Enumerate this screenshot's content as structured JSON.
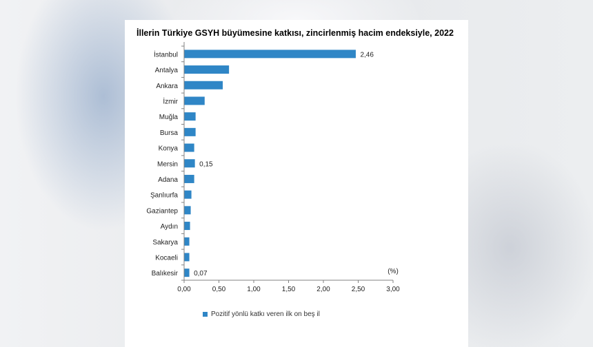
{
  "chart_data": {
    "type": "bar",
    "orientation": "horizontal",
    "title": "İllerin Türkiye GSYH büyümesine katkısı, zincirlenmiş hacim endeksiyle, 2022",
    "categories": [
      "İstanbul",
      "Antalya",
      "Ankara",
      "İzmir",
      "Muğla",
      "Bursa",
      "Konya",
      "Mersin",
      "Adana",
      "Şanlıurfa",
      "Gaziantep",
      "Aydın",
      "Sakarya",
      "Kocaeli",
      "Balıkesir"
    ],
    "series": [
      {
        "name": "Pozitif yönlü katkı veren ilk on beş il",
        "values": [
          2.46,
          0.64,
          0.55,
          0.29,
          0.16,
          0.16,
          0.14,
          0.15,
          0.14,
          0.1,
          0.09,
          0.08,
          0.07,
          0.07,
          0.07
        ]
      }
    ],
    "data_labels": [
      {
        "category": "İstanbul",
        "text": "2,46"
      },
      {
        "category": "Mersin",
        "text": "0,15"
      },
      {
        "category": "Balıkesir",
        "text": "0,07"
      }
    ],
    "xlim": [
      0,
      3
    ],
    "x_ticks": [
      "0,00",
      "0,50",
      "1,00",
      "1,50",
      "2,00",
      "2,50",
      "3,00"
    ],
    "unit_label": "(%)",
    "grid": false,
    "legend_position": "bottom",
    "bar_color": "#2f86c6"
  }
}
